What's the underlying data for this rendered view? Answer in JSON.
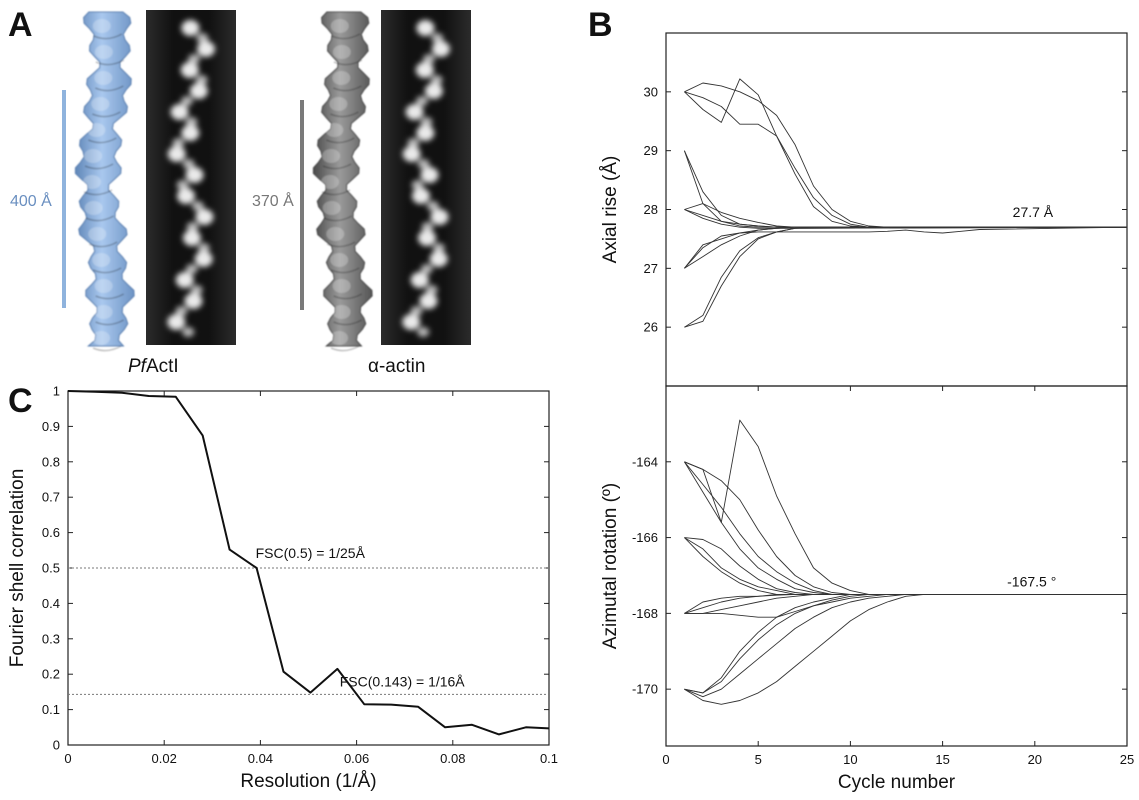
{
  "panel_a": {
    "letter": "A",
    "pfactl_scale_label": "400 Å",
    "pfactl_caption_italic": "Pf",
    "pfactl_caption_rest": "ActI",
    "actin_scale_label": "370 Å",
    "actin_caption": "α-actin",
    "pfactl_color": "#8fb3dd",
    "actin_color": "#7a7a7a"
  },
  "chart_data": [
    {
      "type": "line",
      "panel": "B",
      "ylabel": "Axial rise (Å)",
      "xlabel": "",
      "xlim": [
        0,
        25
      ],
      "ylim": [
        25,
        31
      ],
      "x_ticks": [],
      "y_ticks": [
        26,
        27,
        28,
        29,
        30
      ],
      "annotation": "27.7 Å",
      "final_value": 27.7,
      "series": [
        {
          "x": [
            1,
            2,
            3,
            4,
            5,
            6,
            7,
            8,
            9,
            10,
            11,
            12,
            13,
            14,
            15,
            25
          ],
          "values": [
            30,
            30.15,
            30.1,
            30,
            29.85,
            29.6,
            29.1,
            28.4,
            28.0,
            27.8,
            27.72,
            27.7,
            27.7,
            27.7,
            27.7,
            27.7
          ]
        },
        {
          "x": [
            1,
            2,
            3,
            4,
            5,
            6,
            7,
            8,
            9,
            10,
            11,
            12,
            13,
            14,
            25
          ],
          "values": [
            30,
            29.9,
            29.75,
            29.45,
            29.45,
            29.25,
            28.7,
            28.2,
            27.9,
            27.75,
            27.7,
            27.7,
            27.7,
            27.7,
            27.7
          ]
        },
        {
          "x": [
            1,
            2,
            3,
            4,
            5,
            6,
            7,
            8,
            9,
            10,
            11,
            25
          ],
          "values": [
            30,
            29.7,
            29.48,
            30.22,
            29.95,
            29.25,
            28.6,
            28.05,
            27.8,
            27.72,
            27.7,
            27.7
          ]
        },
        {
          "x": [
            1,
            2,
            3,
            4,
            5,
            6,
            7,
            8,
            25
          ],
          "values": [
            29,
            28.3,
            27.9,
            27.75,
            27.72,
            27.7,
            27.7,
            27.7,
            27.7
          ]
        },
        {
          "x": [
            1,
            2,
            3,
            4,
            5,
            6,
            7,
            25
          ],
          "values": [
            29,
            28.1,
            27.8,
            27.72,
            27.7,
            27.7,
            27.7,
            27.7
          ]
        },
        {
          "x": [
            1,
            2,
            3,
            4,
            5,
            6,
            7,
            8,
            9,
            25
          ],
          "values": [
            28,
            28.1,
            27.95,
            27.85,
            27.78,
            27.72,
            27.7,
            27.7,
            27.7,
            27.7
          ]
        },
        {
          "x": [
            1,
            2,
            3,
            4,
            5,
            6,
            7,
            8,
            25
          ],
          "values": [
            28,
            27.85,
            27.75,
            27.7,
            27.68,
            27.68,
            27.68,
            27.7,
            27.7
          ]
        },
        {
          "x": [
            1,
            2,
            3,
            4,
            5,
            6,
            7,
            25
          ],
          "values": [
            28,
            27.9,
            27.8,
            27.75,
            27.72,
            27.7,
            27.7,
            27.7
          ]
        },
        {
          "x": [
            1,
            2,
            3,
            4,
            5,
            6,
            7,
            8,
            9,
            10,
            11,
            12,
            13,
            14,
            15,
            16,
            17,
            25
          ],
          "values": [
            27,
            27.35,
            27.55,
            27.6,
            27.62,
            27.62,
            27.62,
            27.62,
            27.62,
            27.62,
            27.62,
            27.63,
            27.65,
            27.62,
            27.6,
            27.63,
            27.66,
            27.7
          ]
        },
        {
          "x": [
            1,
            2,
            3,
            4,
            5,
            6,
            7,
            8,
            25
          ],
          "values": [
            27,
            27.4,
            27.5,
            27.6,
            27.65,
            27.68,
            27.7,
            27.7,
            27.7
          ]
        },
        {
          "x": [
            1,
            2,
            3,
            4,
            5,
            6,
            7,
            25
          ],
          "values": [
            27,
            27.2,
            27.4,
            27.55,
            27.65,
            27.68,
            27.7,
            27.7
          ]
        },
        {
          "x": [
            1,
            2,
            3,
            4,
            5,
            6,
            7,
            25
          ],
          "values": [
            26,
            26.1,
            26.7,
            27.2,
            27.5,
            27.62,
            27.68,
            27.7
          ]
        },
        {
          "x": [
            1,
            2,
            3,
            4,
            5,
            6,
            7,
            25
          ],
          "values": [
            26,
            26.2,
            26.85,
            27.3,
            27.52,
            27.62,
            27.68,
            27.7
          ]
        }
      ]
    },
    {
      "type": "line",
      "panel": "B",
      "ylabel": "Azimutal rotation (º)",
      "xlabel": "Cycle number",
      "xlim": [
        0,
        25
      ],
      "ylim": [
        -171.5,
        -162
      ],
      "x_ticks": [
        0,
        5,
        10,
        15,
        20,
        25
      ],
      "y_ticks": [
        -164,
        -166,
        -168,
        -170
      ],
      "annotation": "-167.5 °",
      "final_value": -167.5,
      "series": [
        {
          "x": [
            1,
            2,
            3,
            4,
            5,
            6,
            7,
            8,
            9,
            10,
            11,
            12,
            13,
            14,
            15,
            25
          ],
          "values": [
            -164,
            -164.2,
            -165.6,
            -162.9,
            -163.6,
            -164.9,
            -165.9,
            -166.8,
            -167.2,
            -167.4,
            -167.5,
            -167.5,
            -167.5,
            -167.5,
            -167.5,
            -167.5
          ]
        },
        {
          "x": [
            1,
            2,
            3,
            4,
            5,
            6,
            7,
            8,
            9,
            10,
            11,
            12,
            13,
            25
          ],
          "values": [
            -164,
            -164.2,
            -164.5,
            -165,
            -165.8,
            -166.5,
            -167,
            -167.3,
            -167.45,
            -167.5,
            -167.5,
            -167.5,
            -167.5,
            -167.5
          ]
        },
        {
          "x": [
            1,
            2,
            3,
            4,
            5,
            6,
            7,
            8,
            9,
            10,
            11,
            25
          ],
          "values": [
            -164,
            -164.6,
            -165.2,
            -165.9,
            -166.5,
            -166.9,
            -167.2,
            -167.4,
            -167.5,
            -167.5,
            -167.5,
            -167.5
          ]
        },
        {
          "x": [
            1,
            2,
            3,
            4,
            5,
            6,
            7,
            8,
            9,
            10,
            25
          ],
          "values": [
            -164,
            -164.8,
            -165.6,
            -166.3,
            -166.8,
            -167.1,
            -167.35,
            -167.45,
            -167.5,
            -167.5,
            -167.5
          ]
        },
        {
          "x": [
            1,
            2,
            3,
            4,
            5,
            6,
            7,
            8,
            25
          ],
          "values": [
            -166,
            -166.3,
            -166.8,
            -167.1,
            -167.3,
            -167.4,
            -167.5,
            -167.5,
            -167.5
          ]
        },
        {
          "x": [
            1,
            2,
            3,
            4,
            5,
            6,
            7,
            8,
            25
          ],
          "values": [
            -166,
            -166.05,
            -166.3,
            -166.75,
            -167.1,
            -167.35,
            -167.45,
            -167.5,
            -167.5
          ]
        },
        {
          "x": [
            1,
            2,
            3,
            4,
            5,
            6,
            7,
            25
          ],
          "values": [
            -166,
            -166.5,
            -166.9,
            -167.2,
            -167.4,
            -167.5,
            -167.5,
            -167.5
          ]
        },
        {
          "x": [
            1,
            2,
            3,
            4,
            5,
            6,
            7,
            8,
            9,
            10,
            25
          ],
          "values": [
            -168,
            -168,
            -167.9,
            -167.8,
            -167.7,
            -167.6,
            -167.55,
            -167.5,
            -167.5,
            -167.5,
            -167.5
          ]
        },
        {
          "x": [
            1,
            2,
            3,
            4,
            5,
            6,
            7,
            8,
            25
          ],
          "values": [
            -168,
            -167.7,
            -167.6,
            -167.55,
            -167.55,
            -167.52,
            -167.5,
            -167.5,
            -167.5
          ]
        },
        {
          "x": [
            1,
            2,
            3,
            4,
            5,
            6,
            7,
            8,
            9,
            10,
            11,
            12,
            13,
            14,
            15,
            25
          ],
          "values": [
            -168,
            -168,
            -168,
            -168.05,
            -168.1,
            -168.1,
            -167.95,
            -167.8,
            -167.7,
            -167.6,
            -167.55,
            -167.5,
            -167.5,
            -167.5,
            -167.5,
            -167.5
          ]
        },
        {
          "x": [
            1,
            2,
            3,
            4,
            5,
            6,
            7,
            8,
            25
          ],
          "values": [
            -168,
            -167.85,
            -167.7,
            -167.6,
            -167.55,
            -167.5,
            -167.5,
            -167.5,
            -167.5
          ]
        },
        {
          "x": [
            1,
            2,
            3,
            4,
            5,
            6,
            7,
            8,
            9,
            10,
            11,
            12,
            13,
            14,
            15,
            25
          ],
          "values": [
            -170,
            -170.3,
            -170.4,
            -170.3,
            -170.1,
            -169.8,
            -169.4,
            -169,
            -168.6,
            -168.2,
            -167.9,
            -167.7,
            -167.55,
            -167.5,
            -167.5,
            -167.5
          ]
        },
        {
          "x": [
            1,
            2,
            3,
            4,
            5,
            6,
            7,
            8,
            9,
            10,
            11,
            12,
            13,
            25
          ],
          "values": [
            -170,
            -170.2,
            -170,
            -169.6,
            -169.2,
            -168.8,
            -168.4,
            -168.1,
            -167.85,
            -167.7,
            -167.6,
            -167.55,
            -167.5,
            -167.5
          ]
        },
        {
          "x": [
            1,
            2,
            3,
            4,
            5,
            6,
            7,
            8,
            9,
            10,
            11,
            25
          ],
          "values": [
            -170,
            -170.1,
            -169.8,
            -169.2,
            -168.7,
            -168.3,
            -168,
            -167.8,
            -167.65,
            -167.55,
            -167.5,
            -167.5
          ]
        },
        {
          "x": [
            1,
            2,
            3,
            4,
            5,
            6,
            7,
            8,
            9,
            10,
            25
          ],
          "values": [
            -170,
            -170.1,
            -169.7,
            -169,
            -168.5,
            -168.1,
            -167.85,
            -167.7,
            -167.6,
            -167.5,
            -167.5
          ]
        }
      ]
    },
    {
      "type": "line",
      "panel": "C",
      "xlabel": "Resolution (1/Å)",
      "ylabel": "Fourier shell correlation",
      "xlim": [
        0,
        0.1
      ],
      "ylim": [
        0,
        1
      ],
      "x_ticks": [
        "0",
        "0.02",
        "0.04",
        "0.06",
        "0.08",
        "0.1"
      ],
      "y_ticks": [
        "0",
        "0.1",
        "0.2",
        "0.3",
        "0.4",
        "0.5",
        "0.6",
        "0.7",
        "0.8",
        "0.9",
        "1"
      ],
      "series": [
        {
          "x": [
            0,
            0.0056,
            0.0112,
            0.0168,
            0.0224,
            0.028,
            0.0336,
            0.0392,
            0.0448,
            0.0504,
            0.056,
            0.0616,
            0.0672,
            0.0728,
            0.0784,
            0.084,
            0.0896,
            0.0952,
            0.1
          ],
          "values": [
            1,
            0.998,
            0.995,
            0.986,
            0.984,
            0.874,
            0.552,
            0.5,
            0.207,
            0.148,
            0.215,
            0.115,
            0.114,
            0.108,
            0.05,
            0.057,
            0.03,
            0.05,
            0.047
          ]
        }
      ],
      "thresholds": [
        {
          "y": 0.5,
          "label": "FSC(0.5) = 1/25Å"
        },
        {
          "y": 0.143,
          "label": "FSC(0.143) = 1/16Å"
        }
      ]
    }
  ],
  "panel_letters": {
    "b": "B",
    "c": "C"
  }
}
